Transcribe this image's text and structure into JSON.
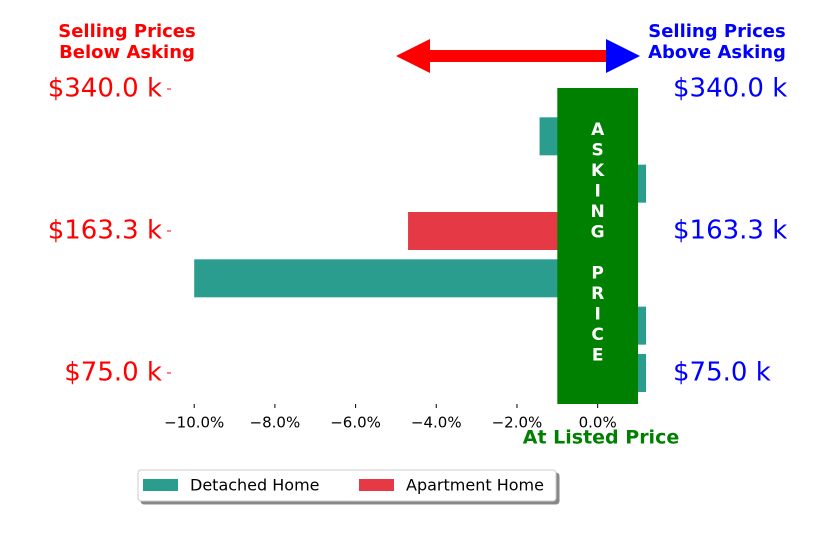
{
  "chart_data": {
    "type": "barh",
    "left_title": "Selling Prices\nBelow Asking",
    "right_title": "Selling Prices\nAbove Asking",
    "xlabel": "At Listed Price",
    "band": {
      "text": "ASKING PRICE",
      "x": [
        -1,
        1
      ],
      "color": "#008000"
    },
    "categories": [
      "$340.0 k",
      null,
      null,
      "$163.3 k",
      null,
      null,
      "$75.0 k"
    ],
    "series": [
      {
        "name": "Detached Home",
        "color": "#2a9d8f",
        "values": [
          null,
          -1.44,
          1.2,
          null,
          -10.0,
          1.2,
          1.2
        ]
      },
      {
        "name": "Apartment Home",
        "color": "#e63946",
        "values": [
          null,
          null,
          null,
          -4.7,
          null,
          null,
          null
        ]
      }
    ],
    "xlim": [
      -10.6,
      1.0
    ],
    "xticks": [
      {
        "value": -10,
        "label": "−10.0%"
      },
      {
        "value": -8,
        "label": "−8.0%"
      },
      {
        "value": -6,
        "label": "−6.0%"
      },
      {
        "value": -4,
        "label": "−4.0%"
      },
      {
        "value": -2,
        "label": "−2.0%"
      },
      {
        "value": 0,
        "label": "0.0%"
      }
    ],
    "legend": "lower-left"
  }
}
